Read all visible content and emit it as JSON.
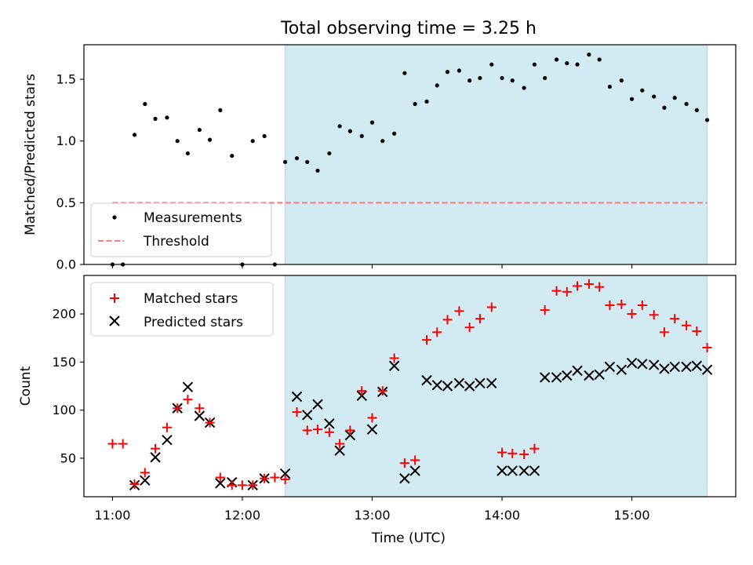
{
  "figure": {
    "title": "Total observing time = 3.25 h",
    "xlabel": "Time (UTC)",
    "x_ticks": [
      "11:00",
      "12:00",
      "13:00",
      "14:00",
      "15:00"
    ]
  },
  "colors": {
    "shade": "#add8e6",
    "measurement": "#000000",
    "threshold": "#ff7b7b",
    "matched": "#ff0000",
    "predicted": "#000000"
  },
  "chart_data": [
    {
      "type": "scatter",
      "panel": "top",
      "title": "Total observing time = 3.25 h",
      "xlabel": "",
      "ylabel": "Matched/Predicted stars",
      "x_unit": "hours UTC",
      "xlim": [
        10.78,
        15.8
      ],
      "ylim": [
        0,
        1.78
      ],
      "yticks": [
        0.0,
        0.5,
        1.0,
        1.5
      ],
      "ytick_labels": [
        "0.0",
        "0.5",
        "1.0",
        "1.5"
      ],
      "shaded_span": [
        12.33,
        15.58
      ],
      "threshold": {
        "name": "Threshold",
        "y": 0.5,
        "x_range": [
          11.0,
          15.58
        ]
      },
      "legend_position": "lower left",
      "series": [
        {
          "name": "Measurements",
          "marker": "dot",
          "x": [
            11.0,
            11.08,
            11.17,
            11.25,
            11.33,
            11.42,
            11.5,
            11.58,
            11.67,
            11.75,
            11.83,
            11.92,
            12.0,
            12.08,
            12.17,
            12.25,
            12.33,
            12.42,
            12.5,
            12.58,
            12.67,
            12.75,
            12.83,
            12.92,
            13.0,
            13.08,
            13.17,
            13.25,
            13.33,
            13.42,
            13.5,
            13.58,
            13.67,
            13.75,
            13.83,
            13.92,
            14.0,
            14.08,
            14.17,
            14.25,
            14.33,
            14.42,
            14.5,
            14.58,
            14.67,
            14.75,
            14.83,
            14.92,
            15.0,
            15.08,
            15.17,
            15.25,
            15.33,
            15.42,
            15.5,
            15.58
          ],
          "y": [
            0.0,
            0.0,
            1.05,
            1.3,
            1.18,
            1.19,
            1.0,
            0.9,
            1.09,
            1.01,
            1.25,
            0.88,
            0.0,
            1.0,
            1.04,
            0.0,
            0.83,
            0.86,
            0.83,
            0.76,
            0.9,
            1.12,
            1.08,
            1.04,
            1.15,
            1.0,
            1.06,
            1.55,
            1.3,
            1.32,
            1.45,
            1.56,
            1.57,
            1.49,
            1.51,
            1.62,
            1.51,
            1.49,
            1.43,
            1.62,
            1.51,
            1.66,
            1.63,
            1.62,
            1.7,
            1.66,
            1.44,
            1.49,
            1.34,
            1.41,
            1.36,
            1.27,
            1.35,
            1.3,
            1.25,
            1.17
          ]
        }
      ]
    },
    {
      "type": "scatter",
      "panel": "bottom",
      "title": "",
      "xlabel": "Time (UTC)",
      "ylabel": "Count",
      "x_unit": "hours UTC",
      "xlim": [
        10.78,
        15.8
      ],
      "ylim": [
        10,
        240
      ],
      "yticks": [
        50,
        100,
        150,
        200
      ],
      "ytick_labels": [
        "50",
        "100",
        "150",
        "200"
      ],
      "shaded_span": [
        12.33,
        15.58
      ],
      "legend_position": "upper left",
      "series": [
        {
          "name": "Matched stars",
          "marker": "plus",
          "x": [
            11.0,
            11.08,
            11.17,
            11.25,
            11.33,
            11.42,
            11.5,
            11.58,
            11.67,
            11.75,
            11.83,
            11.92,
            12.0,
            12.08,
            12.17,
            12.25,
            12.33,
            12.42,
            12.5,
            12.58,
            12.67,
            12.75,
            12.83,
            12.92,
            13.0,
            13.08,
            13.17,
            13.25,
            13.33,
            13.42,
            13.5,
            13.58,
            13.67,
            13.75,
            13.83,
            13.92,
            14.0,
            14.08,
            14.17,
            14.25,
            14.33,
            14.42,
            14.5,
            14.58,
            14.67,
            14.75,
            14.83,
            14.92,
            15.0,
            15.08,
            15.17,
            15.25,
            15.33,
            15.42,
            15.5,
            15.58
          ],
          "y": [
            65,
            65,
            23,
            35,
            60,
            82,
            102,
            111,
            102,
            87,
            30,
            22,
            22,
            22,
            29,
            30,
            28,
            98,
            79,
            80,
            77,
            65,
            79,
            120,
            92,
            120,
            154,
            45,
            48,
            173,
            181,
            194,
            203,
            186,
            195,
            207,
            56,
            55,
            54,
            60,
            204,
            224,
            223,
            229,
            231,
            228,
            209,
            210,
            200,
            209,
            199,
            181,
            195,
            188,
            182,
            165
          ]
        },
        {
          "name": "Predicted stars",
          "marker": "x",
          "x": [
            11.17,
            11.25,
            11.33,
            11.42,
            11.5,
            11.58,
            11.67,
            11.75,
            11.83,
            11.92,
            12.08,
            12.17,
            12.33,
            12.42,
            12.5,
            12.58,
            12.67,
            12.75,
            12.83,
            12.92,
            13.0,
            13.08,
            13.17,
            13.25,
            13.33,
            13.42,
            13.5,
            13.58,
            13.67,
            13.75,
            13.83,
            13.92,
            14.0,
            14.08,
            14.17,
            14.25,
            14.33,
            14.42,
            14.5,
            14.58,
            14.67,
            14.75,
            14.83,
            14.92,
            15.0,
            15.08,
            15.17,
            15.25,
            15.33,
            15.42,
            15.5,
            15.58
          ],
          "y": [
            22,
            27,
            51,
            69,
            102,
            124,
            94,
            87,
            24,
            25,
            22,
            29,
            34,
            114,
            95,
            106,
            86,
            58,
            74,
            115,
            80,
            119,
            146,
            29,
            37,
            131,
            126,
            125,
            128,
            125,
            128,
            128,
            37,
            37,
            37,
            37,
            134,
            134,
            136,
            141,
            136,
            137,
            145,
            142,
            149,
            148,
            147,
            143,
            145,
            145,
            146,
            142
          ]
        }
      ]
    }
  ]
}
